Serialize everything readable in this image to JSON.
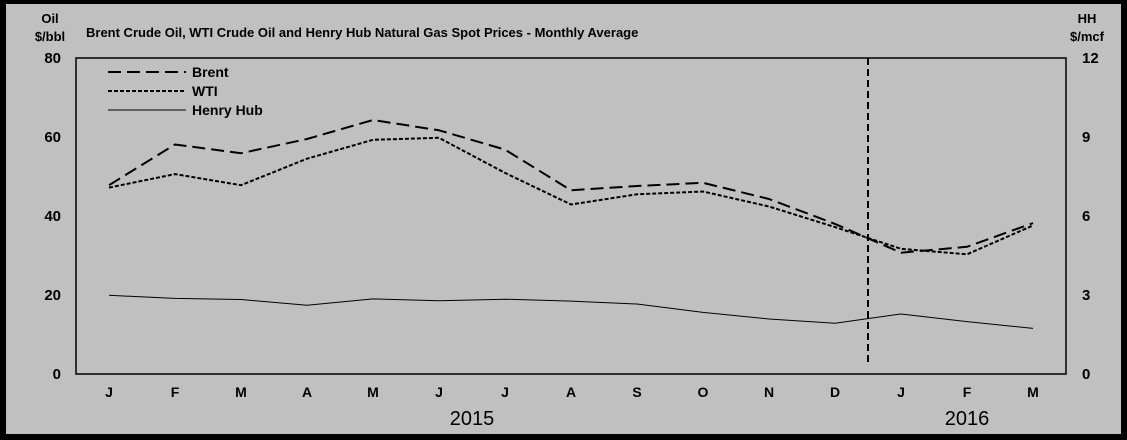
{
  "chart_data": {
    "type": "line",
    "title": "Brent Crude Oil, WTI Crude Oil and Henry Hub Natural Gas Spot Prices - Monthly Average",
    "ylabel_left": [
      "Oil",
      "$/bbl"
    ],
    "ylabel_right": [
      "HH",
      "$/mcf"
    ],
    "ylim_left": [
      0,
      80
    ],
    "ylim_right": [
      0,
      12
    ],
    "yticks_left": [
      "0",
      "20",
      "40",
      "60",
      "80"
    ],
    "yticks_right": [
      "0",
      "3",
      "6",
      "9",
      "12"
    ],
    "categories": [
      "J",
      "F",
      "M",
      "A",
      "M",
      "J",
      "J",
      "A",
      "S",
      "O",
      "N",
      "D",
      "J",
      "F",
      "M"
    ],
    "year_labels": [
      {
        "label": "2015",
        "center_index": 5.5
      },
      {
        "label": "2016",
        "center_index": 13
      }
    ],
    "divider_between": [
      11,
      12
    ],
    "legend_position": "top-left",
    "grid": false,
    "series": [
      {
        "name": "Brent",
        "axis": "left",
        "style": "long-dash",
        "values": [
          47.8,
          58.1,
          55.9,
          59.5,
          64.3,
          61.7,
          56.8,
          46.5,
          47.6,
          48.4,
          44.3,
          38.0,
          30.7,
          32.2,
          38.2
        ]
      },
      {
        "name": "WTI",
        "axis": "left",
        "style": "short-dash",
        "values": [
          47.2,
          50.6,
          47.8,
          54.5,
          59.3,
          59.8,
          50.9,
          42.9,
          45.5,
          46.2,
          42.4,
          37.2,
          31.7,
          30.3,
          37.6
        ]
      },
      {
        "name": "Henry Hub",
        "axis": "right",
        "style": "solid",
        "values": [
          2.99,
          2.87,
          2.83,
          2.61,
          2.85,
          2.78,
          2.84,
          2.77,
          2.66,
          2.34,
          2.09,
          1.93,
          2.28,
          1.99,
          1.73
        ]
      }
    ]
  }
}
